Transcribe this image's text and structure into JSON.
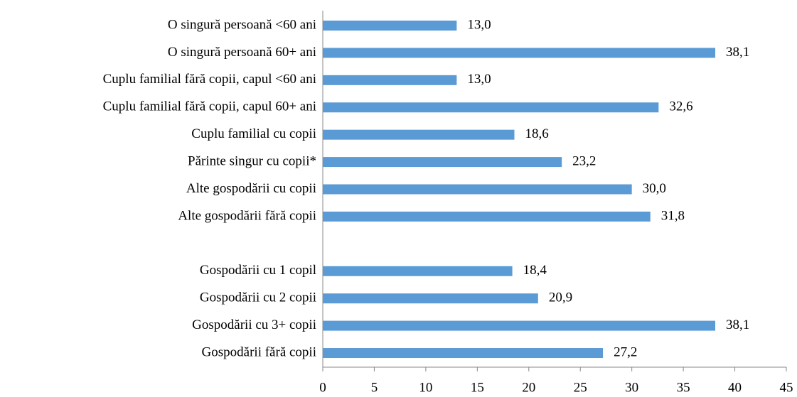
{
  "chart_data": {
    "type": "bar",
    "orientation": "horizontal",
    "categories": [
      "O singură persoană <60 ani",
      "O singură persoană 60+ ani",
      "Cuplu familial fără copii, capul <60 ani",
      "Cuplu familial fără copii, capul 60+ ani",
      "Cuplu familial cu copii",
      "Părinte singur cu copii*",
      "Alte gospodării cu copii",
      "Alte gospodării fără copii",
      null,
      "Gospodării cu 1 copil",
      "Gospodării cu 2 copii",
      "Gospodării cu 3+ copii",
      "Gospodării fără copii"
    ],
    "values": [
      13.0,
      38.1,
      13.0,
      32.6,
      18.6,
      23.2,
      30.0,
      31.8,
      null,
      18.4,
      20.9,
      38.1,
      27.2
    ],
    "value_labels": [
      "13,0",
      "38,1",
      "13,0",
      "32,6",
      "18,6",
      "23,2",
      "30,0",
      "31,8",
      null,
      "18,4",
      "20,9",
      "38,1",
      "27,2"
    ],
    "color": "#5b9bd5",
    "xlim": [
      0,
      45
    ],
    "xticks": [
      0,
      5,
      10,
      15,
      20,
      25,
      30,
      35,
      40,
      45
    ]
  }
}
